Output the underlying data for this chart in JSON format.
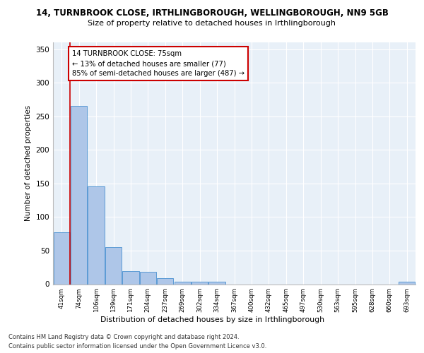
{
  "title_line1": "14, TURNBROOK CLOSE, IRTHLINGBOROUGH, WELLINGBOROUGH, NN9 5GB",
  "title_line2": "Size of property relative to detached houses in Irthlingborough",
  "xlabel": "Distribution of detached houses by size in Irthlingborough",
  "ylabel": "Number of detached properties",
  "categories": [
    "41sqm",
    "74sqm",
    "106sqm",
    "139sqm",
    "171sqm",
    "204sqm",
    "237sqm",
    "269sqm",
    "302sqm",
    "334sqm",
    "367sqm",
    "400sqm",
    "432sqm",
    "465sqm",
    "497sqm",
    "530sqm",
    "563sqm",
    "595sqm",
    "628sqm",
    "660sqm",
    "693sqm"
  ],
  "values": [
    77,
    265,
    146,
    55,
    19,
    18,
    9,
    4,
    4,
    4,
    0,
    0,
    0,
    0,
    0,
    0,
    0,
    0,
    0,
    0,
    4
  ],
  "bar_color": "#aec6e8",
  "bar_edge_color": "#5b9bd5",
  "annotation_text": "14 TURNBROOK CLOSE: 75sqm\n← 13% of detached houses are smaller (77)\n85% of semi-detached houses are larger (487) →",
  "annotation_box_color": "#ffffff",
  "annotation_box_edge_color": "#cc0000",
  "line_color": "#cc0000",
  "footer_line1": "Contains HM Land Registry data © Crown copyright and database right 2024.",
  "footer_line2": "Contains public sector information licensed under the Open Government Licence v3.0.",
  "ylim": [
    0,
    360
  ],
  "yticks": [
    0,
    50,
    100,
    150,
    200,
    250,
    300,
    350
  ],
  "background_color": "#e8f0f8",
  "grid_color": "#ffffff"
}
